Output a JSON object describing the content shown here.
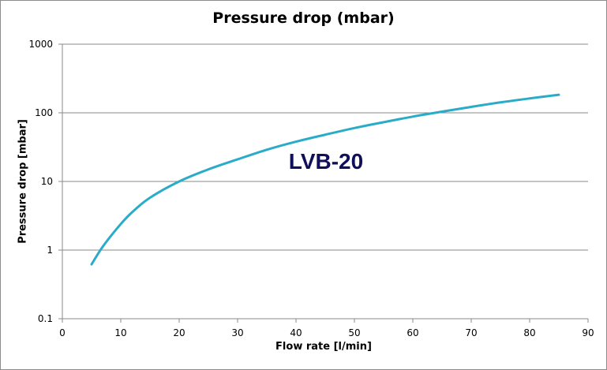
{
  "chart_data": {
    "type": "line",
    "title": "Pressure drop (mbar)",
    "xlabel": "Flow rate [l/min]",
    "ylabel": "Pressure drop [mbar]",
    "xlim": [
      0,
      90
    ],
    "ylim": [
      0.1,
      1000
    ],
    "y_scale": "log",
    "x_ticks": [
      "0",
      "10",
      "20",
      "30",
      "40",
      "50",
      "60",
      "70",
      "80",
      "90"
    ],
    "y_ticks": [
      "0.1",
      "1",
      "10",
      "100",
      "1000"
    ],
    "grid": "horizontal",
    "annotation": "LVB-20",
    "series": [
      {
        "color": "#2aacc8",
        "x": [
          5,
          7,
          10,
          12,
          15,
          20,
          25,
          30,
          35,
          40,
          45,
          50,
          55,
          60,
          65,
          70,
          75,
          80,
          85
        ],
        "y": [
          0.62,
          1.15,
          2.4,
          3.6,
          5.8,
          10,
          15,
          21,
          29,
          38,
          48,
          60,
          73,
          88,
          104,
          122,
          142,
          162,
          183
        ]
      }
    ]
  }
}
